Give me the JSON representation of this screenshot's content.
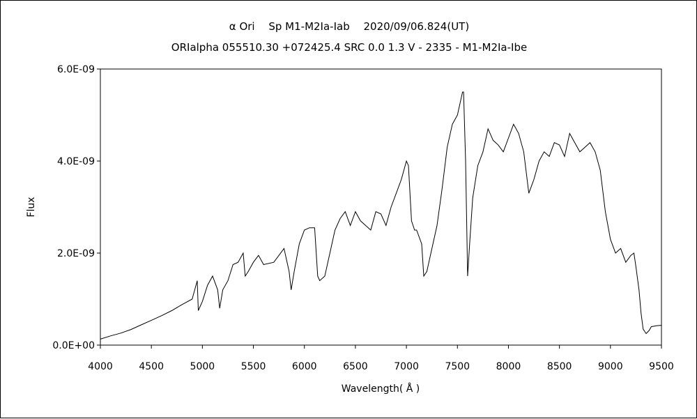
{
  "chart_data": {
    "type": "line",
    "title": "α Ori  Sp M1-M2Ia-Iab  2020/09/06.824(UT)",
    "subtitle": "ORIalpha 055510.30 +072425.4 SRC 0.0 1.3 V - 2335 - M1-M2Ia-Ibe",
    "xlabel": "Wavelength( Å )",
    "ylabel": "Flux",
    "xlim": [
      4000,
      9500
    ],
    "ylim": [
      0,
      6e-09
    ],
    "x_ticks": [
      4000,
      4500,
      5000,
      5500,
      6000,
      6500,
      7000,
      7500,
      8000,
      8500,
      9000,
      9500
    ],
    "x_tick_labels": [
      "4000",
      "4500",
      "5000",
      "5500",
      "6000",
      "6500",
      "7000",
      "7500",
      "8000",
      "8500",
      "9000",
      "9500"
    ],
    "y_ticks": [
      0,
      2e-09,
      4e-09,
      6e-09
    ],
    "y_tick_labels": [
      "0.0E+00",
      "2.0E-09",
      "4.0E-09",
      "6.0E-09"
    ],
    "grid": false,
    "line_color": "#000000",
    "series": [
      {
        "x": [
          4000,
          4100,
          4200,
          4300,
          4400,
          4500,
          4600,
          4700,
          4800,
          4900,
          4950,
          4960,
          5000,
          5050,
          5100,
          5150,
          5170,
          5200,
          5250,
          5300,
          5350,
          5400,
          5420,
          5450,
          5500,
          5550,
          5600,
          5700,
          5800,
          5850,
          5870,
          5900,
          5950,
          6000,
          6050,
          6100,
          6130,
          6150,
          6200,
          6250,
          6300,
          6350,
          6400,
          6450,
          6500,
          6550,
          6600,
          6650,
          6700,
          6750,
          6800,
          6850,
          6900,
          6950,
          7000,
          7020,
          7050,
          7080,
          7100,
          7150,
          7170,
          7200,
          7250,
          7300,
          7350,
          7400,
          7450,
          7500,
          7550,
          7560,
          7580,
          7600,
          7620,
          7650,
          7700,
          7750,
          7800,
          7850,
          7900,
          7950,
          8000,
          8050,
          8100,
          8150,
          8200,
          8250,
          8300,
          8350,
          8400,
          8450,
          8500,
          8550,
          8600,
          8650,
          8700,
          8750,
          8800,
          8850,
          8900,
          8950,
          9000,
          9050,
          9100,
          9150,
          9200,
          9230,
          9250,
          9280,
          9300,
          9320,
          9350,
          9380,
          9400,
          9450,
          9500
        ],
        "y": [
          1.3e-10,
          2e-10,
          2.6e-10,
          3.4e-10,
          4.4e-10,
          5.4e-10,
          6.4e-10,
          7.5e-10,
          8.8e-10,
          1e-09,
          1.4e-09,
          7.5e-10,
          9.5e-10,
          1.3e-09,
          1.5e-09,
          1.2e-09,
          8e-10,
          1.2e-09,
          1.4e-09,
          1.75e-09,
          1.8e-09,
          2e-09,
          1.5e-09,
          1.6e-09,
          1.8e-09,
          1.95e-09,
          1.75e-09,
          1.8e-09,
          2.1e-09,
          1.6e-09,
          1.2e-09,
          1.6e-09,
          2.2e-09,
          2.5e-09,
          2.55e-09,
          2.55e-09,
          1.5e-09,
          1.4e-09,
          1.5e-09,
          2e-09,
          2.5e-09,
          2.75e-09,
          2.9e-09,
          2.6e-09,
          2.9e-09,
          2.7e-09,
          2.6e-09,
          2.5e-09,
          2.9e-09,
          2.85e-09,
          2.6e-09,
          3e-09,
          3.3e-09,
          3.6e-09,
          4e-09,
          3.9e-09,
          2.7e-09,
          2.5e-09,
          2.5e-09,
          2.2e-09,
          1.5e-09,
          1.6e-09,
          2.1e-09,
          2.6e-09,
          3.4e-09,
          4.3e-09,
          4.8e-09,
          5e-09,
          5.5e-09,
          5.5e-09,
          4e-09,
          1.5e-09,
          2.2e-09,
          3.2e-09,
          3.9e-09,
          4.2e-09,
          4.7e-09,
          4.45e-09,
          4.35e-09,
          4.2e-09,
          4.5e-09,
          4.8e-09,
          4.6e-09,
          4.2e-09,
          3.3e-09,
          3.6e-09,
          4e-09,
          4.2e-09,
          4.1e-09,
          4.4e-09,
          4.35e-09,
          4.1e-09,
          4.6e-09,
          4.4e-09,
          4.2e-09,
          4.3e-09,
          4.4e-09,
          4.2e-09,
          3.8e-09,
          2.9e-09,
          2.3e-09,
          2e-09,
          2.1e-09,
          1.8e-09,
          1.95e-09,
          2e-09,
          1.7e-09,
          1.2e-09,
          7e-10,
          3.5e-10,
          2.5e-10,
          3.2e-10,
          4e-10,
          4.2e-10,
          4.3e-10
        ]
      }
    ]
  }
}
